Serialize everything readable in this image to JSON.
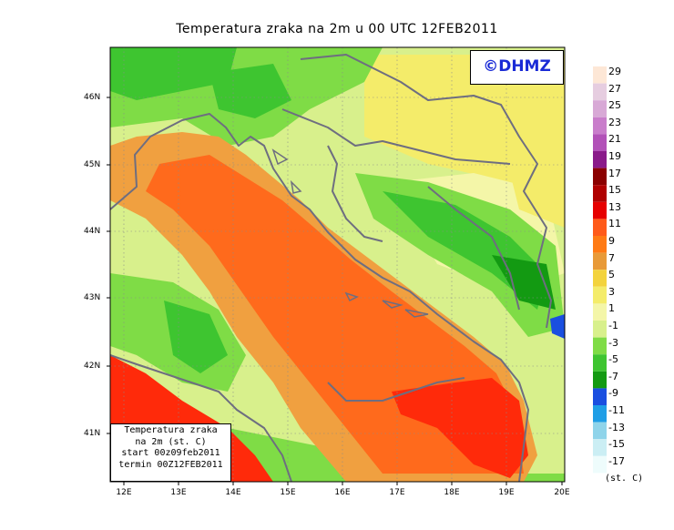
{
  "title": "Temperatura zraka na 2m u 00 UTC 12FEB2011",
  "logo": "©DHMZ",
  "legend": {
    "line1": "Temperatura zraka",
    "line2": "na 2m (st. C)",
    "line3": "start 00z09feb2011",
    "line4": "termin 00Z12FEB2011"
  },
  "colorbar": {
    "unit": "(st. C)",
    "labels": [
      "29",
      "27",
      "25",
      "23",
      "21",
      "19",
      "17",
      "15",
      "13",
      "11",
      "9",
      "7",
      "5",
      "3",
      "1",
      "-1",
      "-3",
      "-5",
      "-7",
      "-9",
      "-11",
      "-13",
      "-15",
      "-17"
    ],
    "colors": [
      "#fde7d6",
      "#e6cde0",
      "#d8a9d6",
      "#c97dcb",
      "#b251b8",
      "#8a1a8a",
      "#8b0000",
      "#b00000",
      "#e60000",
      "#ff5a1a",
      "#ff7a14",
      "#e89a38",
      "#f3d33d",
      "#f4ec6a",
      "#f4f6a8",
      "#d8f08c",
      "#7fdc46",
      "#3ec530",
      "#139a12",
      "#1a4fe0",
      "#1f9ee6",
      "#8fd4ea",
      "#cbeef4",
      "#eefcfc"
    ]
  },
  "axes": {
    "x_ticks": [
      "12E",
      "13E",
      "14E",
      "15E",
      "16E",
      "17E",
      "18E",
      "19E",
      "20E"
    ],
    "y_ticks": [
      "46N",
      "45N",
      "44N",
      "43N",
      "42N",
      "41N"
    ]
  },
  "map_colors": {
    "sea_warm": "#ff6a1c",
    "sea_hot": "#ff2a0a",
    "coast_warm": "#f0a040",
    "light_green": "#d8f08c",
    "mid_green": "#7fdc46",
    "green": "#3ec530",
    "dark_green": "#139a12",
    "yellow": "#f4ec6a",
    "pale_yellow": "#f4f6a8",
    "blue": "#1a4fe0",
    "border": "#6e6e80"
  }
}
